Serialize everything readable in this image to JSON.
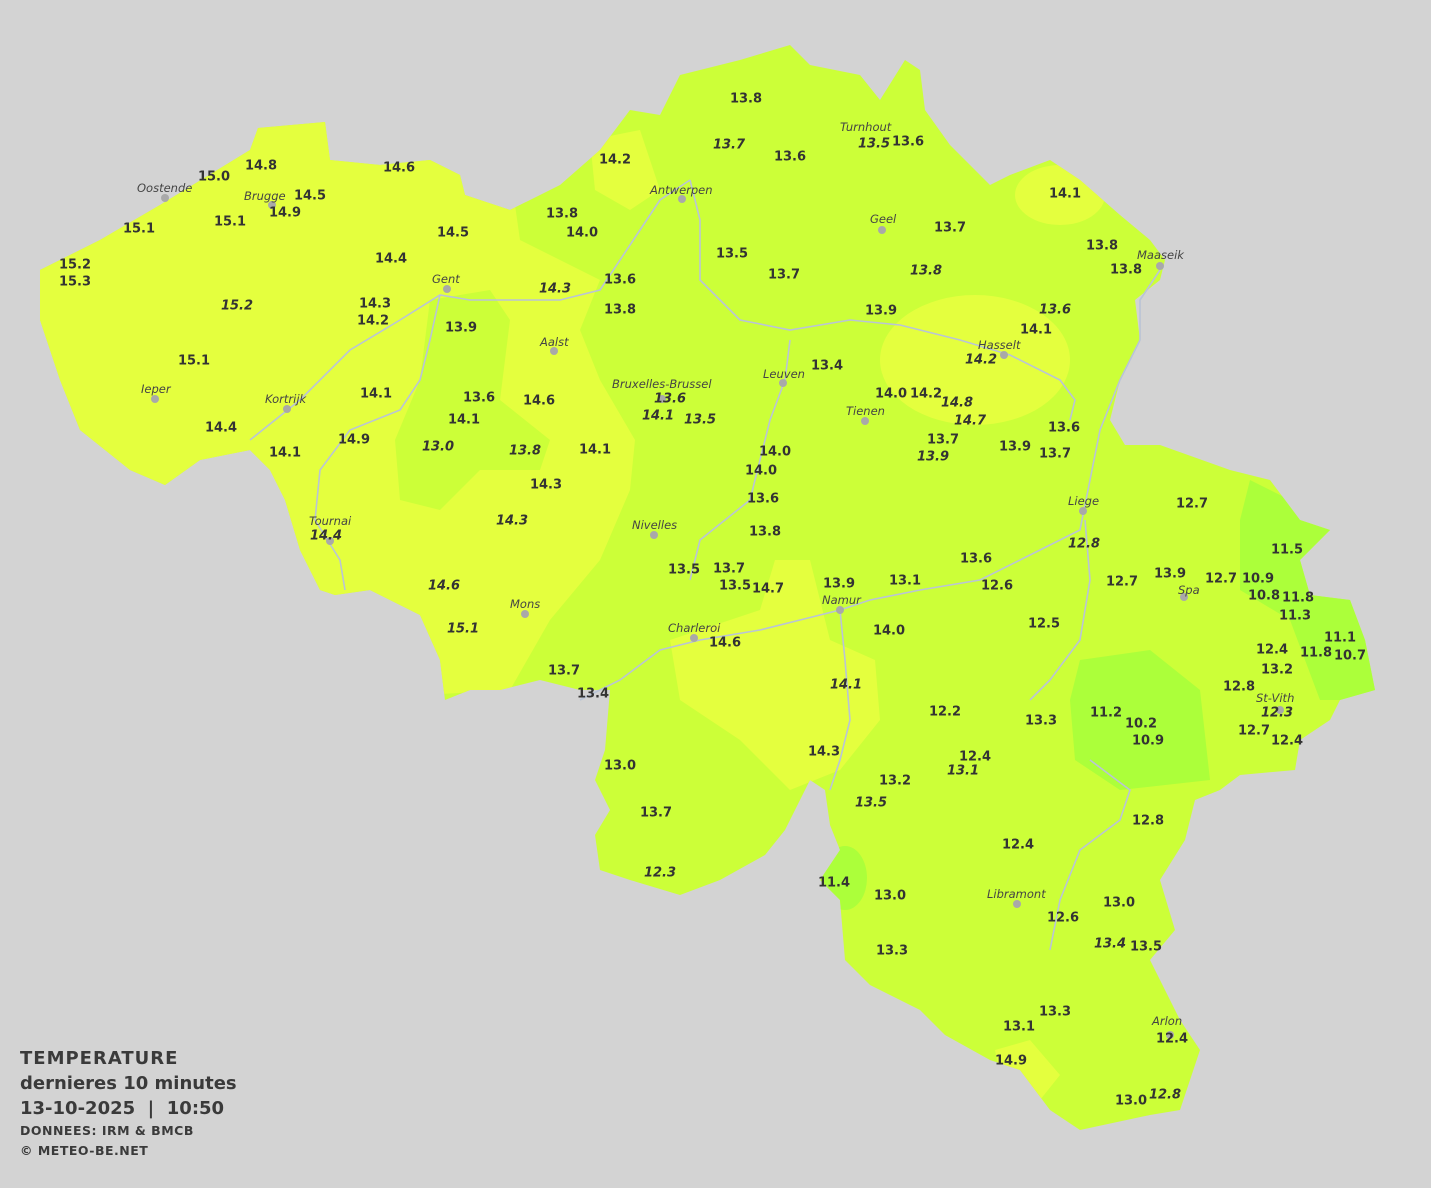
{
  "legend": {
    "title": "TEMPERATURE",
    "subtitle": "dernieres 10 minutes",
    "datetime": "13-10-2025  |  10:50",
    "source": "DONNEES: IRM & BMCB",
    "copyright": "© METEO-BE.NET"
  },
  "colors": {
    "background": "#d3d3d3",
    "warm_zone": "#e4ff3e",
    "mid_zone": "#ccff38",
    "cool_zone": "#acff3a",
    "river": "#b9c4d6",
    "city_dot": "#a9a9a9"
  },
  "cities": [
    "Oostende",
    "Brugge",
    "Antwerpen",
    "Turnhout",
    "Geel",
    "Maaseik",
    "Gent",
    "Aalst",
    "Hasselt",
    "Leuven",
    "Bruxelles-Brussel",
    "Ieper",
    "Kortrijk",
    "Tienen",
    "Liege",
    "Tournai",
    "Nivelles",
    "Spa",
    "Mons",
    "Namur",
    "Charleroi",
    "St-Vith",
    "Libramont",
    "Arlon"
  ],
  "temperatures": [
    "13.8",
    "13.7",
    "13.6",
    "13.5",
    "13.6",
    "14.8",
    "15.0",
    "14.6",
    "14.2",
    "14.5",
    "14.9",
    "15.1",
    "15.1",
    "13.8",
    "14.0",
    "14.5",
    "14.1",
    "13.7",
    "13.8",
    "13.8",
    "15.2",
    "15.3",
    "14.4",
    "13.5",
    "13.7",
    "13.8",
    "13.6",
    "14.3",
    "13.8",
    "14.3",
    "14.2",
    "15.2",
    "13.9",
    "13.6",
    "14.1",
    "13.9",
    "14.2",
    "15.1",
    "13.4",
    "14.1",
    "13.6",
    "14.6",
    "13.6",
    "14.1",
    "13.5",
    "14.0",
    "14.2",
    "14.8",
    "14.7",
    "14.1",
    "14.4",
    "14.9",
    "14.1",
    "13.0",
    "13.8",
    "14.1",
    "14.0",
    "13.6",
    "13.7",
    "13.9",
    "13.9",
    "13.7",
    "14.0",
    "14.3",
    "13.6",
    "12.7",
    "14.3",
    "14.4",
    "13.8",
    "12.8",
    "11.5",
    "13.6",
    "13.7",
    "13.5",
    "13.5",
    "14.7",
    "13.9",
    "13.1",
    "12.6",
    "12.7",
    "13.9",
    "12.7",
    "10.9",
    "10.8",
    "11.8",
    "11.3",
    "14.6",
    "15.1",
    "12.5",
    "14.0",
    "14.6",
    "11.1",
    "11.8",
    "10.7",
    "12.4",
    "13.2",
    "13.7",
    "14.1",
    "12.8",
    "13.4",
    "12.2",
    "11.2",
    "13.3",
    "10.2",
    "12.3",
    "12.7",
    "10.9",
    "12.4",
    "12.4",
    "13.1",
    "14.3",
    "13.0",
    "13.2",
    "13.5",
    "13.7",
    "12.8",
    "12.4",
    "12.3",
    "11.4",
    "13.0",
    "13.0",
    "12.6",
    "13.4",
    "13.5",
    "13.3",
    "13.3",
    "13.1",
    "12.4",
    "14.9",
    "13.0",
    "12.8"
  ]
}
